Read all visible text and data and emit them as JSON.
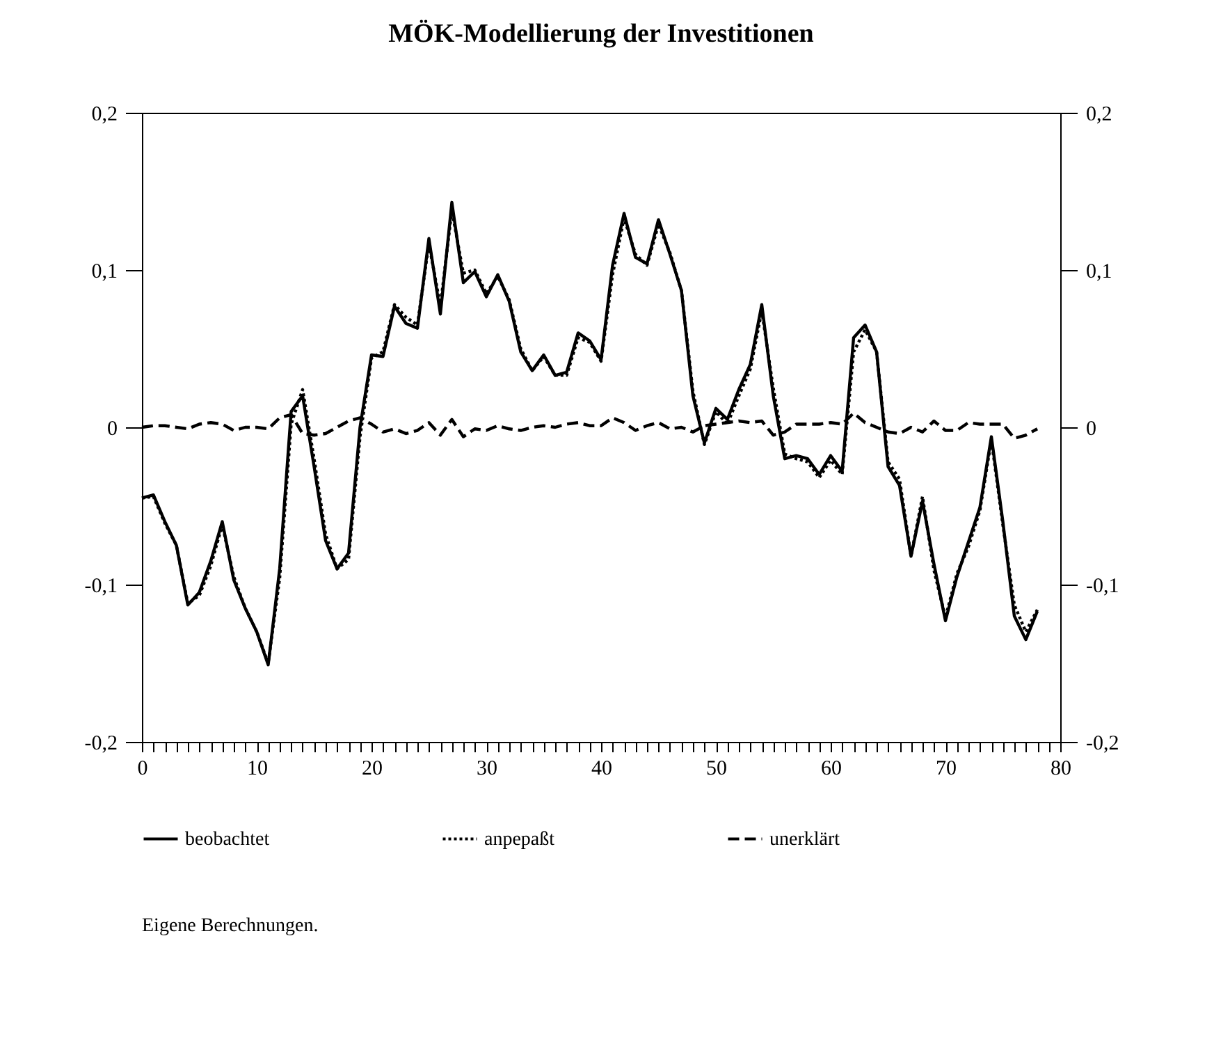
{
  "chart_data": {
    "type": "line",
    "title": "MÖK-Modellierung der Investitionen",
    "x": [
      0,
      1,
      2,
      3,
      4,
      5,
      6,
      7,
      8,
      9,
      10,
      11,
      12,
      13,
      14,
      15,
      16,
      17,
      18,
      19,
      20,
      21,
      22,
      23,
      24,
      25,
      26,
      27,
      28,
      29,
      30,
      31,
      32,
      33,
      34,
      35,
      36,
      37,
      38,
      39,
      40,
      41,
      42,
      43,
      44,
      45,
      46,
      47,
      48,
      49,
      50,
      51,
      52,
      53,
      54,
      55,
      56,
      57,
      58,
      59,
      60,
      61,
      62,
      63,
      64,
      65,
      66,
      67,
      68,
      69,
      70,
      71,
      72,
      73,
      74,
      75,
      76,
      77,
      78
    ],
    "series": [
      {
        "name": "beobachtet",
        "color": "#000000",
        "line_style": "solid",
        "values": [
          -0.045,
          -0.043,
          -0.06,
          -0.075,
          -0.113,
          -0.105,
          -0.085,
          -0.06,
          -0.097,
          -0.115,
          -0.13,
          -0.151,
          -0.09,
          0.01,
          0.02,
          -0.025,
          -0.072,
          -0.09,
          -0.08,
          0.0,
          0.046,
          0.045,
          0.077,
          0.066,
          0.063,
          0.12,
          0.072,
          0.143,
          0.092,
          0.099,
          0.083,
          0.097,
          0.08,
          0.048,
          0.036,
          0.046,
          0.033,
          0.035,
          0.06,
          0.055,
          0.043,
          0.103,
          0.136,
          0.108,
          0.104,
          0.132,
          0.11,
          0.087,
          0.02,
          -0.01,
          0.012,
          0.005,
          0.024,
          0.04,
          0.078,
          0.02,
          -0.02,
          -0.018,
          -0.02,
          -0.03,
          -0.018,
          -0.028,
          0.057,
          0.065,
          0.048,
          -0.025,
          -0.037,
          -0.082,
          -0.047,
          -0.087,
          -0.123,
          -0.095,
          -0.073,
          -0.051,
          -0.006,
          -0.06,
          -0.12,
          -0.135,
          -0.117
        ]
      },
      {
        "name": "anpepaßt",
        "color": "#000000",
        "line_style": "dotted",
        "values": [
          -0.045,
          -0.044,
          -0.061,
          -0.075,
          -0.112,
          -0.107,
          -0.088,
          -0.062,
          -0.095,
          -0.115,
          -0.13,
          -0.15,
          -0.096,
          0.002,
          0.024,
          -0.02,
          -0.068,
          -0.09,
          -0.084,
          -0.006,
          0.044,
          0.048,
          0.078,
          0.07,
          0.065,
          0.117,
          0.077,
          0.138,
          0.098,
          0.1,
          0.085,
          0.096,
          0.081,
          0.05,
          0.036,
          0.045,
          0.033,
          0.033,
          0.057,
          0.054,
          0.042,
          0.097,
          0.133,
          0.11,
          0.103,
          0.129,
          0.111,
          0.087,
          0.023,
          -0.011,
          0.01,
          0.002,
          0.02,
          0.037,
          0.074,
          0.025,
          -0.017,
          -0.02,
          -0.022,
          -0.032,
          -0.021,
          -0.03,
          0.048,
          0.062,
          0.048,
          -0.022,
          -0.033,
          -0.082,
          -0.044,
          -0.091,
          -0.121,
          -0.093,
          -0.076,
          -0.053,
          -0.008,
          -0.062,
          -0.113,
          -0.13,
          -0.116
        ]
      },
      {
        "name": "unerklärt",
        "color": "#000000",
        "line_style": "dashed",
        "values": [
          0.0,
          0.001,
          0.001,
          0.0,
          -0.001,
          0.002,
          0.003,
          0.002,
          -0.002,
          0.0,
          0.0,
          -0.001,
          0.006,
          0.008,
          -0.004,
          -0.005,
          -0.004,
          0.0,
          0.004,
          0.006,
          0.002,
          -0.003,
          -0.001,
          -0.004,
          -0.002,
          0.003,
          -0.005,
          0.005,
          -0.006,
          -0.001,
          -0.002,
          0.001,
          -0.001,
          -0.002,
          0.0,
          0.001,
          0.0,
          0.002,
          0.003,
          0.001,
          0.001,
          0.006,
          0.003,
          -0.002,
          0.001,
          0.003,
          -0.001,
          0.0,
          -0.003,
          0.001,
          0.002,
          0.003,
          0.004,
          0.003,
          0.004,
          -0.005,
          -0.003,
          0.002,
          0.002,
          0.002,
          0.003,
          0.002,
          0.009,
          0.003,
          0.0,
          -0.003,
          -0.004,
          0.0,
          -0.003,
          0.004,
          -0.002,
          -0.002,
          0.003,
          0.002,
          0.002,
          0.002,
          -0.007,
          -0.005,
          -0.001
        ]
      }
    ],
    "xlim": [
      0,
      80
    ],
    "xticks": [
      0,
      {
        "value": 1,
        "label": null
      },
      {
        "value": 2,
        "label": null
      },
      {
        "value": 3,
        "label": null
      },
      {
        "value": 4,
        "label": null
      },
      {
        "value": 5,
        "label": null
      },
      {
        "value": 6,
        "label": null
      },
      {
        "value": 7,
        "label": null
      },
      {
        "value": 8,
        "label": null
      },
      {
        "value": 9,
        "label": null
      },
      10,
      {
        "value": 11,
        "label": null
      },
      {
        "value": 12,
        "label": null
      },
      {
        "value": 13,
        "label": null
      },
      {
        "value": 14,
        "label": null
      },
      {
        "value": 15,
        "label": null
      },
      {
        "value": 16,
        "label": null
      },
      {
        "value": 17,
        "label": null
      },
      {
        "value": 18,
        "label": null
      },
      {
        "value": 19,
        "label": null
      },
      20,
      {
        "value": 21,
        "label": null
      },
      {
        "value": 22,
        "label": null
      },
      {
        "value": 23,
        "label": null
      },
      {
        "value": 24,
        "label": null
      },
      {
        "value": 25,
        "label": null
      },
      {
        "value": 26,
        "label": null
      },
      {
        "value": 27,
        "label": null
      },
      {
        "value": 28,
        "label": null
      },
      {
        "value": 29,
        "label": null
      },
      30,
      {
        "value": 31,
        "label": null
      },
      {
        "value": 32,
        "label": null
      },
      {
        "value": 33,
        "label": null
      },
      {
        "value": 34,
        "label": null
      },
      {
        "value": 35,
        "label": null
      },
      {
        "value": 36,
        "label": null
      },
      {
        "value": 37,
        "label": null
      },
      {
        "value": 38,
        "label": null
      },
      {
        "value": 39,
        "label": null
      },
      40,
      {
        "value": 41,
        "label": null
      },
      {
        "value": 42,
        "label": null
      },
      {
        "value": 43,
        "label": null
      },
      {
        "value": 44,
        "label": null
      },
      {
        "value": 45,
        "label": null
      },
      {
        "value": 46,
        "label": null
      },
      {
        "value": 47,
        "label": null
      },
      {
        "value": 48,
        "label": null
      },
      {
        "value": 49,
        "label": null
      },
      50,
      {
        "value": 51,
        "label": null
      },
      {
        "value": 52,
        "label": null
      },
      {
        "value": 53,
        "label": null
      },
      {
        "value": 54,
        "label": null
      },
      {
        "value": 55,
        "label": null
      },
      {
        "value": 56,
        "label": null
      },
      {
        "value": 57,
        "label": null
      },
      {
        "value": 58,
        "label": null
      },
      {
        "value": 59,
        "label": null
      },
      60,
      {
        "value": 61,
        "label": null
      },
      {
        "value": 62,
        "label": null
      },
      {
        "value": 63,
        "label": null
      },
      {
        "value": 64,
        "label": null
      },
      {
        "value": 65,
        "label": null
      },
      {
        "value": 66,
        "label": null
      },
      {
        "value": 67,
        "label": null
      },
      {
        "value": 68,
        "label": null
      },
      {
        "value": 69,
        "label": null
      },
      70,
      {
        "value": 71,
        "label": null
      },
      {
        "value": 72,
        "label": null
      },
      {
        "value": 73,
        "label": null
      },
      {
        "value": 74,
        "label": null
      },
      {
        "value": 75,
        "label": null
      },
      {
        "value": 76,
        "label": null
      },
      {
        "value": 77,
        "label": null
      },
      {
        "value": 78,
        "label": null
      },
      {
        "value": 79,
        "label": null
      },
      80
    ],
    "ylim": [
      -0.2,
      0.2
    ],
    "yticks": [
      {
        "value": -0.2,
        "label": "-0,2"
      },
      {
        "value": -0.1,
        "label": "-0,1"
      },
      0,
      {
        "value": 0.1,
        "label": "0,1"
      },
      {
        "value": 0.2,
        "label": "0,2"
      }
    ],
    "y2lim": [
      -0.2,
      0.2
    ],
    "y2ticks": [
      {
        "value": -0.2,
        "label": "-0,2"
      },
      {
        "value": -0.1,
        "label": "-0,1"
      },
      0,
      {
        "value": 0.1,
        "label": "0,1"
      },
      {
        "value": 0.2,
        "label": "0,2"
      }
    ],
    "grid": false,
    "legend": "bottom",
    "annotations": [
      "Eigene Berechnungen."
    ]
  }
}
